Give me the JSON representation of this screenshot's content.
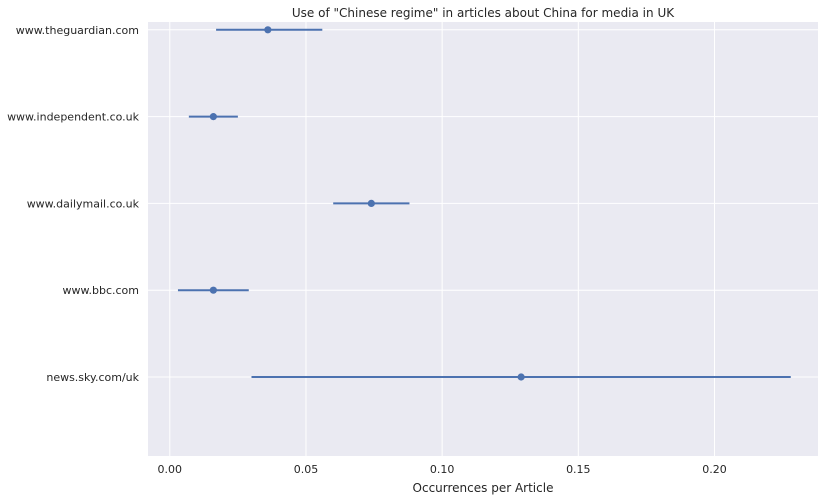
{
  "chart_data": {
    "type": "scatter",
    "title": "Use of \"Chinese regime\" in articles about China for media in UK",
    "xlabel": "Occurrences per Article",
    "ylabel": "",
    "xlim": [
      -0.008,
      0.238
    ],
    "xticks": [
      0.0,
      0.05,
      0.1,
      0.15,
      0.2
    ],
    "xtick_labels": [
      "0.00",
      "0.05",
      "0.10",
      "0.15",
      "0.20"
    ],
    "grid": true,
    "categories": [
      "www.theguardian.com",
      "www.independent.co.uk",
      "www.dailymail.co.uk",
      "www.bbc.com",
      "news.sky.com/uk"
    ],
    "series": [
      {
        "values": [
          0.036,
          0.016,
          0.074,
          0.016,
          0.129
        ],
        "ci_low": [
          0.017,
          0.007,
          0.06,
          0.003,
          0.03
        ],
        "ci_high": [
          0.056,
          0.025,
          0.088,
          0.029,
          0.228
        ]
      }
    ],
    "colors": {
      "series": "#4c72b0",
      "background": "#eaeaf2",
      "grid": "#ffffff"
    }
  }
}
